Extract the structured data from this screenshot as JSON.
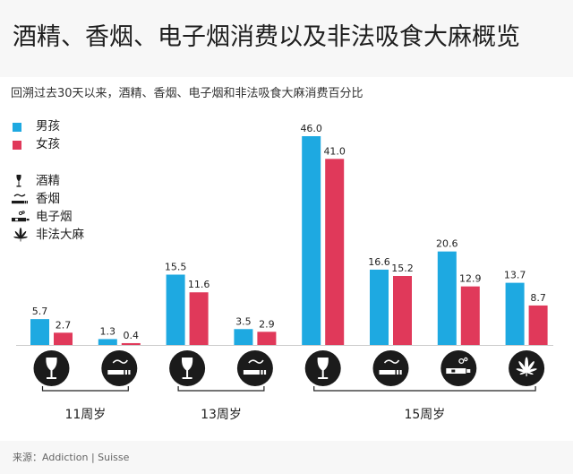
{
  "title": "酒精、香烟、电子烟消费以及非法吸食大麻概览",
  "subtitle": "回溯过去30天以来，酒精、香烟、电子烟和非法吸食大麻消费百分比",
  "source": "来源：Addiction | Suisse",
  "legend": {
    "boys": "男孩",
    "girls": "女孩",
    "alcohol": "酒精",
    "cigarette": "香烟",
    "ecig": "电子烟",
    "cannabis": "非法大麻"
  },
  "colors": {
    "boys": "#1ea9e1",
    "girls": "#e0395a",
    "icon": "#1b1b1b",
    "axis": "#222222"
  },
  "chart_data": {
    "type": "bar",
    "ylim": [
      0,
      46
    ],
    "ylabel": "",
    "xlabel": "",
    "grid": false,
    "legend_position": "top-left",
    "series": [
      {
        "name": "男孩",
        "values": [
          5.7,
          1.3,
          15.5,
          3.5,
          46.0,
          16.6,
          20.6,
          13.7
        ]
      },
      {
        "name": "女孩",
        "values": [
          2.7,
          0.4,
          11.6,
          2.9,
          41.0,
          15.2,
          12.9,
          8.7
        ]
      }
    ],
    "categories": [
      {
        "age": "11周岁",
        "substance": "alcohol-icon"
      },
      {
        "age": "11周岁",
        "substance": "cigarette-icon"
      },
      {
        "age": "13周岁",
        "substance": "alcohol-icon"
      },
      {
        "age": "13周岁",
        "substance": "cigarette-icon"
      },
      {
        "age": "15周岁",
        "substance": "alcohol-icon"
      },
      {
        "age": "15周岁",
        "substance": "cigarette-icon"
      },
      {
        "age": "15周岁",
        "substance": "ecig-icon"
      },
      {
        "age": "15周岁",
        "substance": "cannabis-icon"
      }
    ],
    "groups": [
      {
        "label": "11周岁",
        "count": 2
      },
      {
        "label": "13周岁",
        "count": 2
      },
      {
        "label": "15周岁",
        "count": 4
      }
    ]
  }
}
